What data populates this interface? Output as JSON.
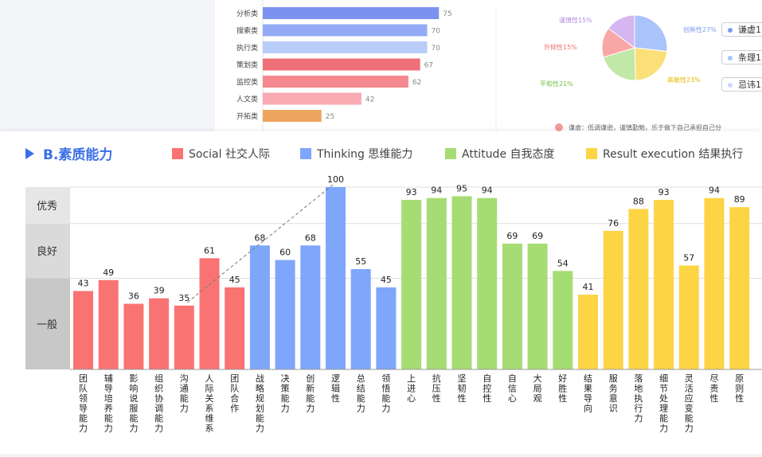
{
  "top_bar_chart": {
    "categories": [
      "分析类",
      "搜索类",
      "执行类",
      "策划类",
      "监控类",
      "人文类",
      "开拓类"
    ],
    "values": [
      75,
      70,
      70,
      67,
      62,
      42,
      25
    ],
    "colors": [
      "#7b93ee",
      "#92abf4",
      "#b9cdf8",
      "#f0707a",
      "#f48a8f",
      "#f8aab0",
      "#eda55f"
    ]
  },
  "pie_chart": {
    "slices": [
      {
        "label": "创新性27%",
        "value": 27,
        "color": "#a9c3fb"
      },
      {
        "label": "高敏性23%",
        "value": 23,
        "color": "#fbe07a"
      },
      {
        "label": "平和性21%",
        "value": 21,
        "color": "#c1e8a6"
      },
      {
        "label": "外倾性15%",
        "value": 15,
        "color": "#f9a6a6"
      },
      {
        "label": "谨慎性15%",
        "value": 15,
        "color": "#d6b6f0"
      }
    ]
  },
  "pie_buttons": [
    {
      "label": "谦虚1",
      "color": "#7b9cf0"
    },
    {
      "label": "条理1",
      "color": "#a9c3fb"
    },
    {
      "label": "忌讳1",
      "color": "#c9d8fb"
    }
  ],
  "note_text": "谦虚：低调谦逊，谨慎勤勉，乐于做下自己承担自己分",
  "section": {
    "title": "B.素质能力"
  },
  "chart_data": {
    "type": "bar",
    "title": "B.素质能力",
    "ylim": [
      0,
      100
    ],
    "legend": [
      {
        "name": "Social 社交人际",
        "color": "#fa7373"
      },
      {
        "name": "Thinking 思维能力",
        "color": "#7ea6fb"
      },
      {
        "name": "Attitude 自我态度",
        "color": "#a6dc74"
      },
      {
        "name": "Result execution 结果执行",
        "color": "#fdd444"
      }
    ],
    "bands": [
      {
        "label": "优秀",
        "from": 80,
        "to": 100,
        "color": "#e6e6e6"
      },
      {
        "label": "良好",
        "from": 50,
        "to": 80,
        "color": "#dadada"
      },
      {
        "label": "一般",
        "from": 0,
        "to": 50,
        "color": "#c8c8c8"
      }
    ],
    "categories": [
      "团队领导能力",
      "辅导培养能力",
      "影响说服能力",
      "组织协调能力",
      "沟通能力",
      "人际关系维系",
      "团队合作",
      "战略规划能力",
      "决策能力",
      "创新能力",
      "逻辑性",
      "总结能力",
      "领悟能力",
      "上进心",
      "抗压性",
      "坚韧性",
      "自控性",
      "自信心",
      "大局观",
      "好胜性",
      "结果导向",
      "服务意识",
      "落地执行力",
      "细节处理能力",
      "灵活应变能力",
      "尽责性",
      "原则性"
    ],
    "values": [
      43,
      49,
      36,
      39,
      35,
      61,
      45,
      68,
      60,
      68,
      100,
      55,
      45,
      93,
      94,
      95,
      94,
      69,
      69,
      54,
      41,
      76,
      88,
      93,
      57,
      94,
      89
    ],
    "groups": [
      0,
      0,
      0,
      0,
      0,
      0,
      0,
      1,
      1,
      1,
      1,
      1,
      1,
      2,
      2,
      2,
      2,
      2,
      2,
      2,
      3,
      3,
      3,
      3,
      3,
      3,
      3
    ]
  }
}
